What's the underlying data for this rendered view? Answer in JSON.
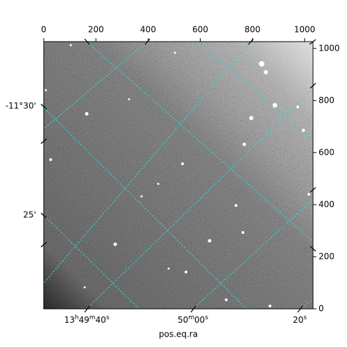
{
  "chart_data": {
    "type": "image",
    "xlabel": "pos.eq.ra",
    "xlim": [
      0,
      1032
    ],
    "ylim": [
      0,
      1026
    ],
    "xticks": [
      0,
      200,
      400,
      600,
      800,
      1000
    ],
    "yticks": [
      0,
      200,
      400,
      600,
      800,
      1000
    ],
    "wcs_xticks": [
      "13h49m40s",
      "50m00s",
      "20s"
    ],
    "wcs_yticks": [
      "-11°30'",
      "25'"
    ]
  }
}
